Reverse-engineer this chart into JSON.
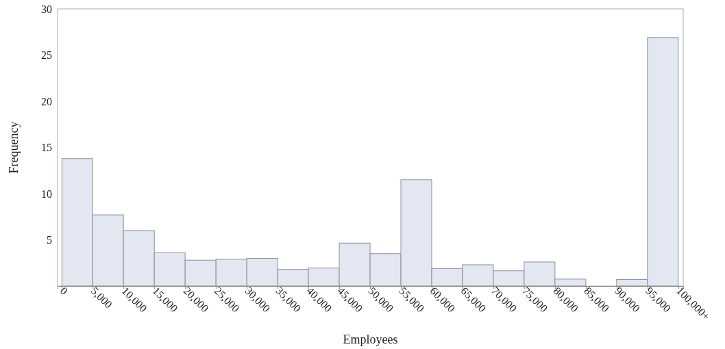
{
  "chart_data": {
    "type": "histogram",
    "xlabel": "Employees",
    "ylabel": "Frequency",
    "bins": [
      0,
      5000,
      10000,
      15000,
      20000,
      25000,
      30000,
      35000,
      40000,
      45000,
      50000,
      55000,
      60000,
      65000,
      70000,
      75000,
      80000,
      85000,
      90000,
      95000,
      100000
    ],
    "values": [
      13.8,
      7.7,
      6.0,
      3.6,
      2.8,
      2.9,
      3.0,
      1.8,
      1.95,
      4.65,
      3.5,
      11.5,
      1.9,
      2.3,
      1.65,
      2.6,
      0.75,
      0,
      0.7,
      26.9
    ],
    "color": "#e3e7f1",
    "xlim": [
      -700,
      100800
    ],
    "ylim": [
      0,
      30
    ],
    "xticks": [
      {
        "value": 0,
        "label": "0"
      },
      {
        "value": 5000,
        "label": "5,000"
      },
      {
        "value": 10000,
        "label": "10,000"
      },
      {
        "value": 15000,
        "label": "15,000"
      },
      {
        "value": 20000,
        "label": "20,000"
      },
      {
        "value": 25000,
        "label": "25,000"
      },
      {
        "value": 30000,
        "label": "30,000"
      },
      {
        "value": 35000,
        "label": "35,000"
      },
      {
        "value": 40000,
        "label": "40,000"
      },
      {
        "value": 45000,
        "label": "45,000"
      },
      {
        "value": 50000,
        "label": "50,000"
      },
      {
        "value": 55000,
        "label": "55,000"
      },
      {
        "value": 60000,
        "label": "60,000"
      },
      {
        "value": 65000,
        "label": "65,000"
      },
      {
        "value": 70000,
        "label": "70,000"
      },
      {
        "value": 75000,
        "label": "75,000"
      },
      {
        "value": 80000,
        "label": "80,000"
      },
      {
        "value": 85000,
        "label": "85,000"
      },
      {
        "value": 90000,
        "label": "90,000"
      },
      {
        "value": 95000,
        "label": "95,000"
      },
      {
        "value": 100000,
        "label": "100,000+"
      }
    ],
    "yticks": [
      5,
      10,
      15,
      20,
      25,
      30
    ],
    "grid": false
  }
}
